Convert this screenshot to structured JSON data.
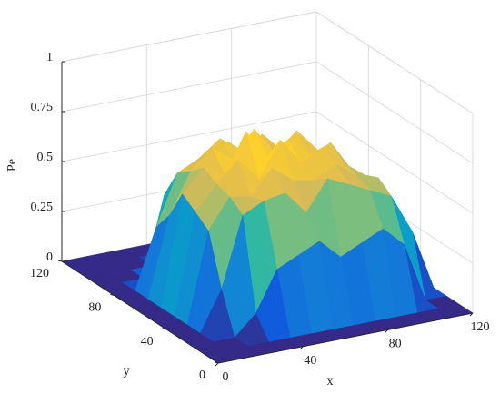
{
  "chart_data": {
    "type": "surface",
    "xlabel": "x",
    "ylabel": "y",
    "zlabel": "Pe",
    "x": [
      0,
      10,
      20,
      30,
      40,
      50,
      60,
      70,
      80,
      90,
      100,
      110,
      120
    ],
    "y": [
      0,
      10,
      20,
      30,
      40,
      50,
      60,
      70,
      80,
      90,
      100,
      110,
      120
    ],
    "z": [
      [
        0,
        0,
        0,
        0,
        0,
        0,
        0,
        0,
        0,
        0,
        0,
        0,
        0
      ],
      [
        0,
        0,
        0,
        0,
        0,
        0,
        0,
        0,
        0,
        0,
        0,
        0,
        0
      ],
      [
        0,
        0,
        0,
        0.1,
        0.3,
        0.35,
        0.4,
        0.3,
        0.35,
        0.4,
        0.3,
        0,
        0
      ],
      [
        0,
        0,
        0.2,
        0.55,
        0.6,
        0.62,
        0.5,
        0.65,
        0.6,
        0.55,
        0.5,
        0.3,
        0
      ],
      [
        0,
        0,
        0.45,
        0.6,
        0.58,
        0.7,
        0.62,
        0.6,
        0.66,
        0.58,
        0.55,
        0.35,
        0
      ],
      [
        0,
        0,
        0.5,
        0.62,
        0.72,
        0.6,
        0.78,
        0.64,
        0.7,
        0.6,
        0.52,
        0.4,
        0
      ],
      [
        0,
        0,
        0.55,
        0.66,
        0.6,
        0.8,
        0.65,
        0.72,
        0.62,
        0.66,
        0.5,
        0.3,
        0
      ],
      [
        0,
        0,
        0.4,
        0.6,
        0.7,
        0.62,
        0.75,
        0.6,
        0.7,
        0.58,
        0.45,
        0,
        0
      ],
      [
        0,
        0,
        0.3,
        0.55,
        0.6,
        0.68,
        0.6,
        0.66,
        0.55,
        0.5,
        0.3,
        0,
        0
      ],
      [
        0,
        0,
        0,
        0.4,
        0.5,
        0.55,
        0.6,
        0.5,
        0.45,
        0.3,
        0,
        0,
        0
      ],
      [
        0,
        0,
        0,
        0,
        0.2,
        0.3,
        0.25,
        0.2,
        0,
        0,
        0,
        0,
        0
      ],
      [
        0,
        0,
        0,
        0,
        0,
        0,
        0,
        0,
        0,
        0,
        0,
        0,
        0
      ],
      [
        0,
        0,
        0,
        0,
        0,
        0,
        0,
        0,
        0,
        0,
        0,
        0,
        0
      ]
    ],
    "xlim": [
      0,
      120
    ],
    "ylim": [
      0,
      120
    ],
    "zlim": [
      0,
      1
    ],
    "xticks": [
      0,
      40,
      80,
      120
    ],
    "yticks": [
      0,
      40,
      80,
      120
    ],
    "zticks": [
      0,
      0.25,
      0.5,
      0.75,
      1
    ],
    "grid": true,
    "colormap": "parula"
  }
}
